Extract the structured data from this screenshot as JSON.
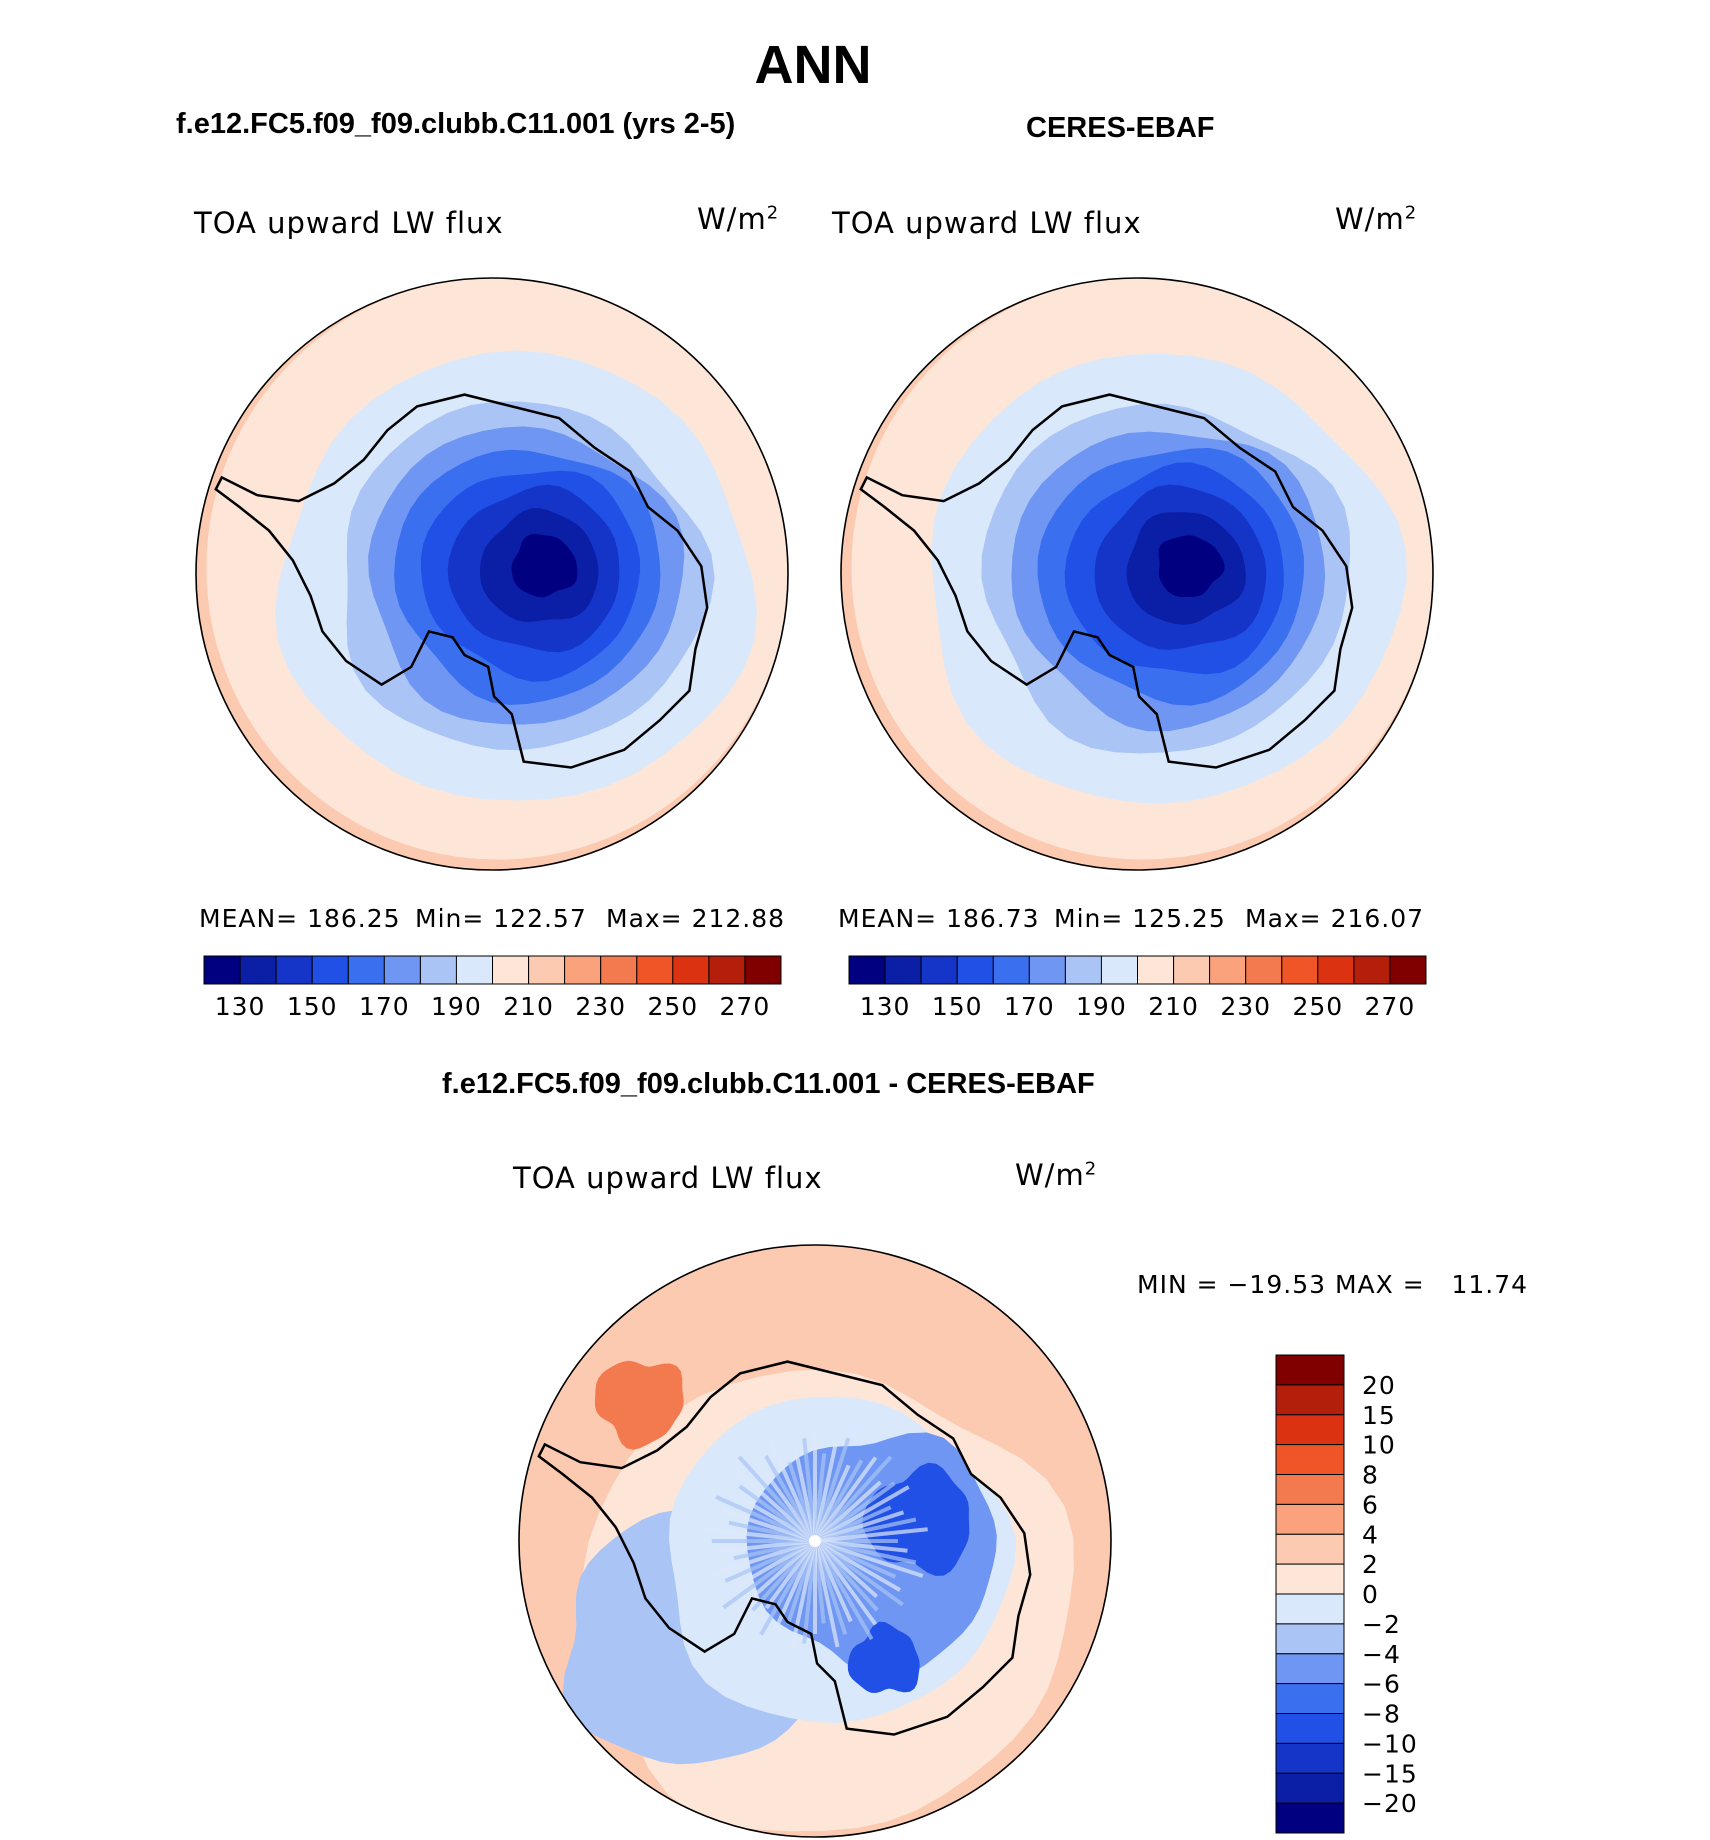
{
  "page": {
    "title": "ANN"
  },
  "chart_data": [
    {
      "type": "heatmap",
      "projection": "south-polar-stereographic",
      "case_title": "f.e12.FC5.f09_f09.clubb.C11.001 (yrs 2-5)",
      "variable": "TOA upward LW flux",
      "units_base": "W/m",
      "units_exp": "2",
      "stats": {
        "mean_label": "MEAN= 186.25",
        "min_label": "Min= 122.57",
        "max_label": "Max= 212.88",
        "mean": 186.25,
        "min": 122.57,
        "max": 212.88
      },
      "levels": [
        130,
        140,
        150,
        160,
        170,
        180,
        190,
        200,
        210,
        220,
        230,
        240,
        250,
        260,
        270
      ],
      "tick_labels": [
        "130",
        "150",
        "170",
        "190",
        "210",
        "230",
        "250",
        "270"
      ],
      "colors": [
        "#000080",
        "#0a1ea6",
        "#1535c9",
        "#2050e6",
        "#3a6ff0",
        "#6f96f2",
        "#a9c4f5",
        "#d9e8fb",
        "#fde6d8",
        "#fccab0",
        "#f9a27c",
        "#f37a4f",
        "#ef5527",
        "#db3312",
        "#b31f0b",
        "#800000"
      ]
    },
    {
      "type": "heatmap",
      "projection": "south-polar-stereographic",
      "case_title": "CERES-EBAF",
      "variable": "TOA upward LW flux",
      "units_base": "W/m",
      "units_exp": "2",
      "stats": {
        "mean_label": "MEAN= 186.73",
        "min_label": "Min= 125.25",
        "max_label": "Max= 216.07",
        "mean": 186.73,
        "min": 125.25,
        "max": 216.07
      },
      "levels": [
        130,
        140,
        150,
        160,
        170,
        180,
        190,
        200,
        210,
        220,
        230,
        240,
        250,
        260,
        270
      ],
      "tick_labels": [
        "130",
        "150",
        "170",
        "190",
        "210",
        "230",
        "250",
        "270"
      ],
      "colors": [
        "#000080",
        "#0a1ea6",
        "#1535c9",
        "#2050e6",
        "#3a6ff0",
        "#6f96f2",
        "#a9c4f5",
        "#d9e8fb",
        "#fde6d8",
        "#fccab0",
        "#f9a27c",
        "#f37a4f",
        "#ef5527",
        "#db3312",
        "#b31f0b",
        "#800000"
      ]
    },
    {
      "type": "heatmap",
      "projection": "south-polar-stereographic",
      "case_title": "f.e12.FC5.f09_f09.clubb.C11.001 - CERES-EBAF",
      "variable": "TOA upward LW flux",
      "units_base": "W/m",
      "units_exp": "2",
      "stats": {
        "minmax_label": "MIN = −19.53 MAX =   11.74",
        "min": -19.53,
        "max": 11.74
      },
      "levels": [
        -20,
        -15,
        -10,
        -8,
        -6,
        -4,
        -2,
        0,
        2,
        4,
        6,
        8,
        10,
        15,
        20
      ],
      "tick_labels": [
        "20",
        "15",
        "10",
        "8",
        "6",
        "4",
        "2",
        "0",
        "−2",
        "−4",
        "−6",
        "−8",
        "−10",
        "−15",
        "−20"
      ],
      "colors": [
        "#800000",
        "#b31f0b",
        "#db3312",
        "#ef5527",
        "#f37a4f",
        "#f9a27c",
        "#fccab0",
        "#fde6d8",
        "#d9e8fb",
        "#a9c4f5",
        "#6f96f2",
        "#3a6ff0",
        "#2050e6",
        "#1535c9",
        "#0a1ea6",
        "#000080"
      ]
    }
  ]
}
